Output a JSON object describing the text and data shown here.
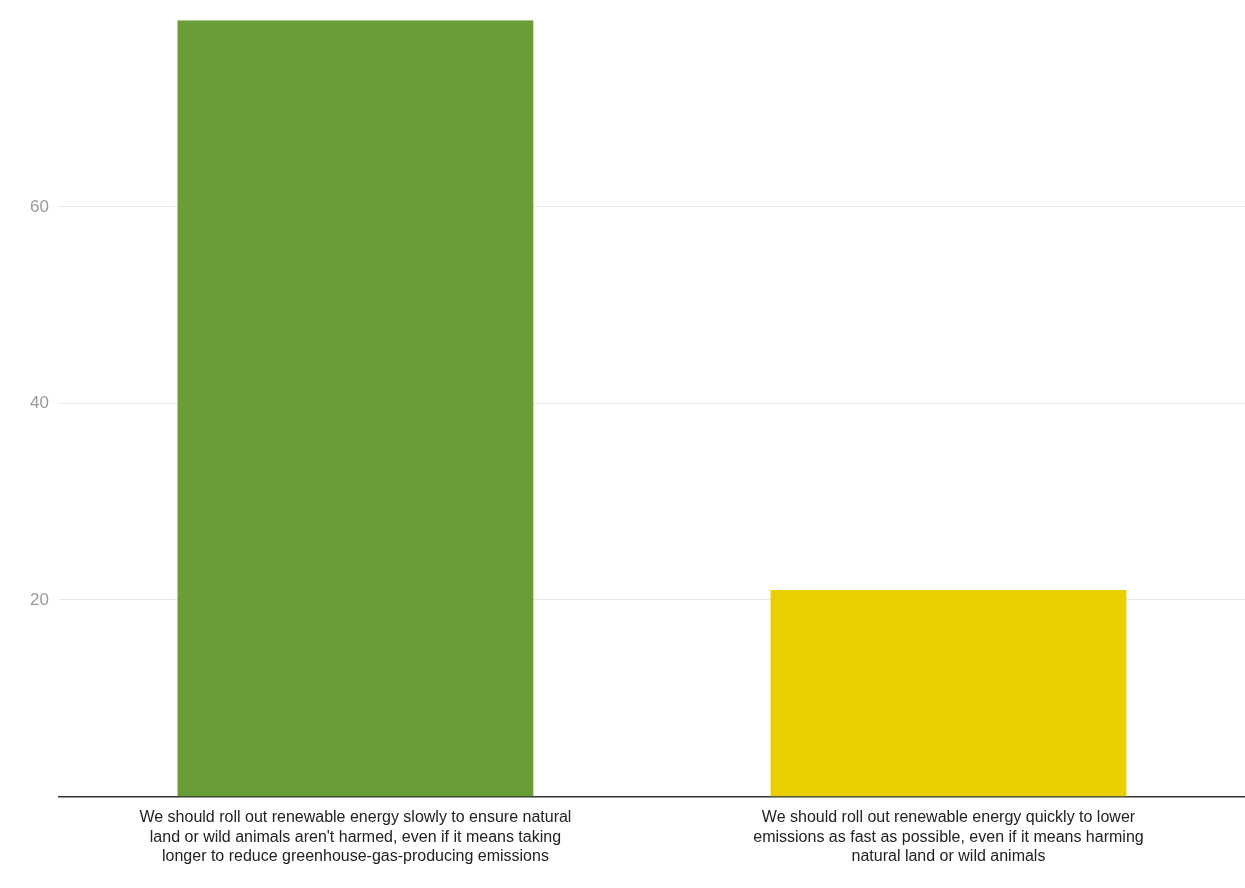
{
  "chart_data": {
    "type": "bar",
    "categories": [
      "We should roll out renewable energy slowly to ensure natural land or wild animals aren't harmed, even if it means taking longer to reduce greenhouse-gas-producing emissions",
      "We should roll out renewable energy quickly to lower emissions as fast as possible, even if it means harming natural land or wild animals"
    ],
    "values": [
      79,
      21
    ],
    "colors": [
      "#699e37",
      "#e8d000"
    ],
    "ylim": [
      0,
      79
    ],
    "yticks": [
      20,
      40,
      60
    ],
    "grid": "y",
    "legend": false
  }
}
